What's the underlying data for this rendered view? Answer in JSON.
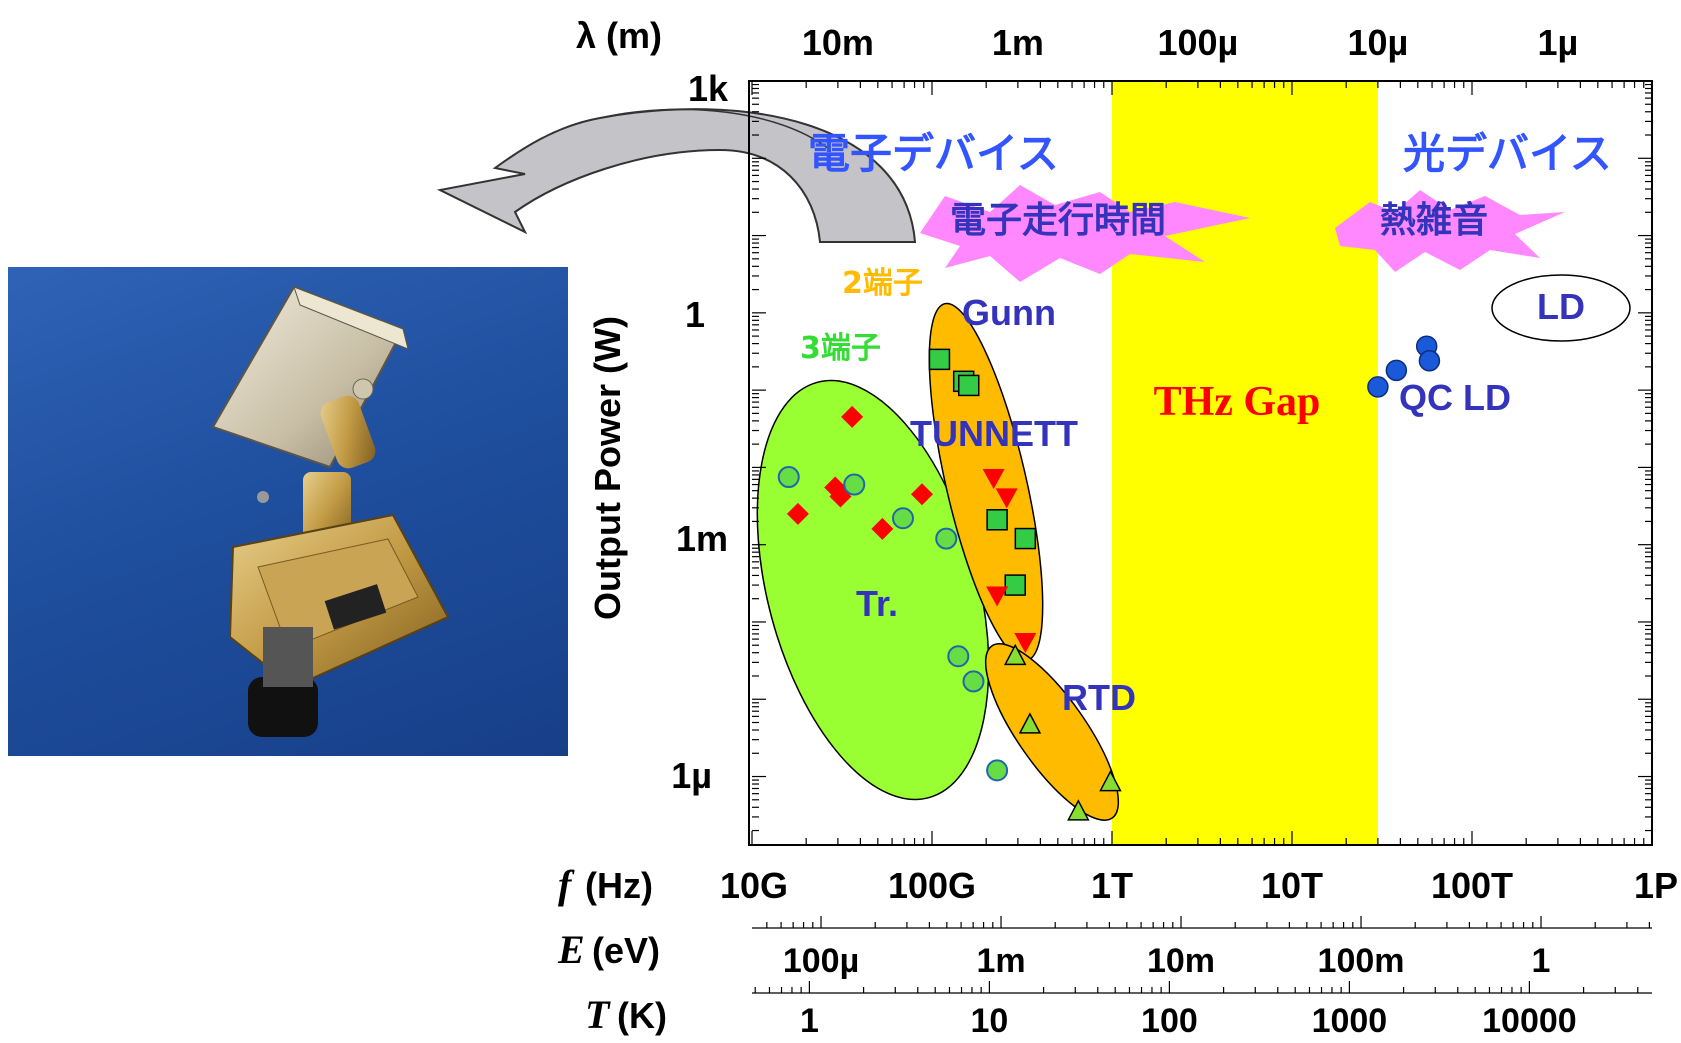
{
  "chart_data": {
    "type": "scatter",
    "title": "",
    "xlabel_symbol": "f",
    "xlabel_unit": "(Hz)",
    "ylabel": "Output Power (W)",
    "xscale": "log",
    "yscale": "log",
    "xlim": [
      10000000000.0,
      1000000000000000.0
    ],
    "ylim": [
      1.3e-07,
      1000
    ],
    "x_ticks": [
      "10G",
      "100G",
      "1T",
      "10T",
      "100T",
      "1P"
    ],
    "y_ticks": [
      "1k",
      "1",
      "1m",
      "1µ"
    ],
    "top_axis": {
      "label": "λ (m)",
      "ticks": [
        "10m",
        "1m",
        "100µ",
        "10µ",
        "1µ"
      ]
    },
    "energy_axis": {
      "label_symbol": "E",
      "label_unit": "(eV)",
      "ticks": [
        "100µ",
        "1m",
        "10m",
        "100m",
        "1"
      ]
    },
    "temperature_axis": {
      "label_symbol": "T",
      "label_unit": "(K)",
      "ticks": [
        "1",
        "10",
        "100",
        "1000",
        "10000"
      ]
    },
    "thz_gap": {
      "label": "THz Gap",
      "x_range": [
        1000000000000.0,
        30000000000000.0
      ],
      "color": "#ffff00"
    },
    "region_labels": {
      "electronic_devices": "電子デバイス",
      "optical_devices": "光デバイス",
      "transit_time": "電子走行時間",
      "thermal_noise": "熱雑音",
      "two_terminal": "2端子",
      "three_terminal": "3端子",
      "gunn": "Gunn",
      "tunnett": "TUNNETT",
      "tr": "Tr.",
      "rtd": "RTD",
      "qc_ld": "QC LD",
      "ld": "LD"
    },
    "series": [
      {
        "marker": "diamond",
        "color": "#ff0000",
        "points": [
          [
            18000000000.0,
            0.0025
          ],
          [
            29000000000.0,
            0.0055
          ],
          [
            31000000000.0,
            0.0042
          ],
          [
            36000000000.0,
            0.045
          ],
          [
            53000000000.0,
            0.0016
          ],
          [
            88000000000.0,
            0.0045
          ]
        ]
      },
      {
        "marker": "circle-open",
        "color": "#66dd44",
        "points": [
          [
            16000000000.0,
            0.0075
          ],
          [
            37000000000.0,
            0.006
          ],
          [
            69000000000.0,
            0.0022
          ],
          [
            120000000000.0,
            0.0012
          ],
          [
            140000000000.0,
            3.6e-05
          ],
          [
            170000000000.0,
            1.7e-05
          ],
          [
            230000000000.0,
            1.2e-06
          ]
        ]
      },
      {
        "marker": "square",
        "color": "#33cc44",
        "points": [
          [
            110000000000.0,
            0.25
          ],
          [
            150000000000.0,
            0.13
          ],
          [
            160000000000.0,
            0.115
          ],
          [
            230000000000.0,
            0.0021
          ],
          [
            330000000000.0,
            0.0012
          ],
          [
            290000000000.0,
            0.0003
          ]
        ]
      },
      {
        "marker": "triangle-down",
        "color": "#ff0000",
        "points": [
          [
            220000000000.0,
            0.0073
          ],
          [
            260000000000.0,
            0.0041
          ],
          [
            230000000000.0,
            0.00022
          ],
          [
            330000000000.0,
            5.5e-05
          ]
        ]
      },
      {
        "marker": "triangle-up",
        "color": "#88dd33",
        "points": [
          [
            290000000000.0,
            3.7e-05
          ],
          [
            350000000000.0,
            4.8e-06
          ],
          [
            650000000000.0,
            3.6e-07
          ],
          [
            980000000000.0,
            8.6e-07
          ]
        ]
      },
      {
        "marker": "circle",
        "color": "#1a5ad8",
        "points": [
          [
            30000000000000.0,
            0.11
          ],
          [
            38000000000000.0,
            0.18
          ],
          [
            56000000000000.0,
            0.37
          ],
          [
            58000000000000.0,
            0.24
          ]
        ]
      }
    ]
  },
  "colors": {
    "gap": "#ffff00",
    "tr": "#99ff33",
    "two_terminal": "#ffbb00",
    "blue_text": "#3333bb",
    "device_text": "#3355ff",
    "burst": "#ff88ff"
  }
}
